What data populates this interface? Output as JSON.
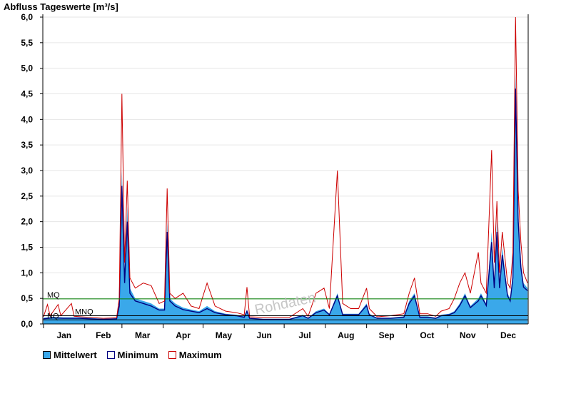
{
  "chart_data": {
    "type": "area",
    "title": "Abfluss Tageswerte [m³/s]",
    "ylim": [
      0,
      6.0
    ],
    "yticks": [
      "0,0",
      "0,5",
      "1,0",
      "1,5",
      "2,0",
      "2,5",
      "3,0",
      "3,5",
      "4,0",
      "4,5",
      "5,0",
      "5,5",
      "6,0"
    ],
    "months": [
      "Jan",
      "Feb",
      "Mar",
      "Apr",
      "May",
      "Jun",
      "Jul",
      "Aug",
      "Sep",
      "Oct",
      "Nov",
      "Dec"
    ],
    "grid": true,
    "reference_lines": [
      {
        "label": "MQ",
        "value": 0.49,
        "color": "#008000"
      },
      {
        "label": "MNQ",
        "value": 0.16,
        "color": "#000000"
      },
      {
        "label": "NQ",
        "value": 0.08,
        "color": "#000000"
      }
    ],
    "watermark": "Rohdaten",
    "series": [
      {
        "name": "Mittelwert",
        "color": "#3aa8ea",
        "style": "area",
        "points": [
          [
            1,
            0.12
          ],
          [
            8,
            0.14
          ],
          [
            16,
            0.13
          ],
          [
            28,
            0.13
          ],
          [
            35,
            0.12
          ],
          [
            46,
            0.1
          ],
          [
            56,
            0.11
          ],
          [
            58,
            0.4
          ],
          [
            60,
            3.0
          ],
          [
            62,
            0.9
          ],
          [
            64,
            2.3
          ],
          [
            66,
            0.7
          ],
          [
            70,
            0.5
          ],
          [
            76,
            0.45
          ],
          [
            82,
            0.4
          ],
          [
            88,
            0.3
          ],
          [
            92,
            0.3
          ],
          [
            94,
            2.0
          ],
          [
            96,
            0.5
          ],
          [
            100,
            0.4
          ],
          [
            106,
            0.32
          ],
          [
            112,
            0.28
          ],
          [
            118,
            0.25
          ],
          [
            124,
            0.35
          ],
          [
            130,
            0.25
          ],
          [
            138,
            0.2
          ],
          [
            146,
            0.18
          ],
          [
            152,
            0.15
          ],
          [
            154,
            0.28
          ],
          [
            156,
            0.12
          ],
          [
            166,
            0.1
          ],
          [
            176,
            0.1
          ],
          [
            186,
            0.1
          ],
          [
            196,
            0.18
          ],
          [
            200,
            0.12
          ],
          [
            206,
            0.25
          ],
          [
            212,
            0.3
          ],
          [
            216,
            0.2
          ],
          [
            222,
            0.6
          ],
          [
            226,
            0.2
          ],
          [
            232,
            0.2
          ],
          [
            238,
            0.2
          ],
          [
            244,
            0.4
          ],
          [
            246,
            0.2
          ],
          [
            252,
            0.12
          ],
          [
            262,
            0.12
          ],
          [
            272,
            0.15
          ],
          [
            276,
            0.45
          ],
          [
            280,
            0.6
          ],
          [
            284,
            0.15
          ],
          [
            290,
            0.15
          ],
          [
            296,
            0.12
          ],
          [
            300,
            0.18
          ],
          [
            306,
            0.2
          ],
          [
            310,
            0.25
          ],
          [
            314,
            0.4
          ],
          [
            318,
            0.6
          ],
          [
            322,
            0.35
          ],
          [
            328,
            0.5
          ],
          [
            330,
            0.6
          ],
          [
            334,
            0.4
          ],
          [
            338,
            1.8
          ],
          [
            340,
            0.8
          ],
          [
            342,
            2.0
          ],
          [
            344,
            0.8
          ],
          [
            346,
            1.5
          ],
          [
            350,
            0.6
          ],
          [
            352,
            0.5
          ],
          [
            354,
            1.0
          ],
          [
            356,
            4.9
          ],
          [
            358,
            2.2
          ],
          [
            360,
            1.2
          ],
          [
            362,
            0.8
          ],
          [
            365,
            0.7
          ]
        ]
      },
      {
        "name": "Minimum",
        "color": "#000080",
        "style": "line",
        "points": [
          [
            1,
            0.1
          ],
          [
            8,
            0.12
          ],
          [
            16,
            0.11
          ],
          [
            28,
            0.11
          ],
          [
            35,
            0.1
          ],
          [
            46,
            0.09
          ],
          [
            56,
            0.1
          ],
          [
            58,
            0.35
          ],
          [
            60,
            2.7
          ],
          [
            62,
            0.8
          ],
          [
            64,
            2.0
          ],
          [
            66,
            0.6
          ],
          [
            70,
            0.45
          ],
          [
            76,
            0.4
          ],
          [
            82,
            0.35
          ],
          [
            88,
            0.27
          ],
          [
            92,
            0.27
          ],
          [
            94,
            1.8
          ],
          [
            96,
            0.45
          ],
          [
            100,
            0.35
          ],
          [
            106,
            0.28
          ],
          [
            112,
            0.25
          ],
          [
            118,
            0.22
          ],
          [
            124,
            0.3
          ],
          [
            130,
            0.22
          ],
          [
            138,
            0.18
          ],
          [
            146,
            0.16
          ],
          [
            152,
            0.13
          ],
          [
            154,
            0.25
          ],
          [
            156,
            0.11
          ],
          [
            166,
            0.09
          ],
          [
            176,
            0.09
          ],
          [
            186,
            0.09
          ],
          [
            196,
            0.16
          ],
          [
            200,
            0.11
          ],
          [
            206,
            0.22
          ],
          [
            212,
            0.27
          ],
          [
            216,
            0.18
          ],
          [
            222,
            0.55
          ],
          [
            226,
            0.18
          ],
          [
            232,
            0.18
          ],
          [
            238,
            0.18
          ],
          [
            244,
            0.36
          ],
          [
            246,
            0.18
          ],
          [
            252,
            0.11
          ],
          [
            262,
            0.11
          ],
          [
            272,
            0.13
          ],
          [
            276,
            0.4
          ],
          [
            280,
            0.55
          ],
          [
            284,
            0.13
          ],
          [
            290,
            0.13
          ],
          [
            296,
            0.11
          ],
          [
            300,
            0.16
          ],
          [
            306,
            0.18
          ],
          [
            310,
            0.22
          ],
          [
            314,
            0.36
          ],
          [
            318,
            0.55
          ],
          [
            322,
            0.32
          ],
          [
            328,
            0.45
          ],
          [
            330,
            0.55
          ],
          [
            334,
            0.36
          ],
          [
            338,
            1.6
          ],
          [
            340,
            0.7
          ],
          [
            342,
            1.8
          ],
          [
            344,
            0.7
          ],
          [
            346,
            1.35
          ],
          [
            350,
            0.55
          ],
          [
            352,
            0.45
          ],
          [
            354,
            0.9
          ],
          [
            356,
            4.6
          ],
          [
            358,
            2.0
          ],
          [
            360,
            1.1
          ],
          [
            362,
            0.72
          ],
          [
            365,
            0.65
          ]
        ]
      },
      {
        "name": "Maximum",
        "color": "#cc0000",
        "style": "line",
        "points": [
          [
            1,
            0.14
          ],
          [
            4,
            0.38
          ],
          [
            6,
            0.16
          ],
          [
            12,
            0.38
          ],
          [
            14,
            0.16
          ],
          [
            22,
            0.4
          ],
          [
            24,
            0.15
          ],
          [
            35,
            0.13
          ],
          [
            46,
            0.11
          ],
          [
            56,
            0.12
          ],
          [
            58,
            0.5
          ],
          [
            60,
            4.5
          ],
          [
            62,
            1.2
          ],
          [
            64,
            2.8
          ],
          [
            66,
            0.9
          ],
          [
            70,
            0.7
          ],
          [
            76,
            0.8
          ],
          [
            82,
            0.75
          ],
          [
            88,
            0.4
          ],
          [
            92,
            0.45
          ],
          [
            94,
            2.65
          ],
          [
            96,
            0.6
          ],
          [
            100,
            0.5
          ],
          [
            106,
            0.6
          ],
          [
            112,
            0.35
          ],
          [
            118,
            0.3
          ],
          [
            124,
            0.8
          ],
          [
            130,
            0.35
          ],
          [
            138,
            0.25
          ],
          [
            146,
            0.22
          ],
          [
            152,
            0.18
          ],
          [
            154,
            0.72
          ],
          [
            156,
            0.14
          ],
          [
            166,
            0.13
          ],
          [
            176,
            0.13
          ],
          [
            186,
            0.13
          ],
          [
            196,
            0.3
          ],
          [
            200,
            0.15
          ],
          [
            206,
            0.6
          ],
          [
            212,
            0.7
          ],
          [
            216,
            0.3
          ],
          [
            222,
            3.0
          ],
          [
            226,
            0.4
          ],
          [
            232,
            0.3
          ],
          [
            238,
            0.3
          ],
          [
            244,
            0.7
          ],
          [
            246,
            0.3
          ],
          [
            252,
            0.14
          ],
          [
            262,
            0.16
          ],
          [
            272,
            0.2
          ],
          [
            276,
            0.6
          ],
          [
            280,
            0.9
          ],
          [
            284,
            0.2
          ],
          [
            290,
            0.2
          ],
          [
            296,
            0.15
          ],
          [
            300,
            0.25
          ],
          [
            306,
            0.3
          ],
          [
            310,
            0.5
          ],
          [
            314,
            0.8
          ],
          [
            318,
            1.0
          ],
          [
            322,
            0.6
          ],
          [
            328,
            1.4
          ],
          [
            330,
            0.8
          ],
          [
            334,
            0.6
          ],
          [
            338,
            3.4
          ],
          [
            340,
            1.2
          ],
          [
            342,
            2.4
          ],
          [
            344,
            1.0
          ],
          [
            346,
            1.8
          ],
          [
            350,
            0.8
          ],
          [
            352,
            0.7
          ],
          [
            354,
            1.4
          ],
          [
            356,
            6.0
          ],
          [
            358,
            2.6
          ],
          [
            360,
            1.6
          ],
          [
            362,
            1.0
          ],
          [
            365,
            0.8
          ]
        ]
      }
    ]
  }
}
